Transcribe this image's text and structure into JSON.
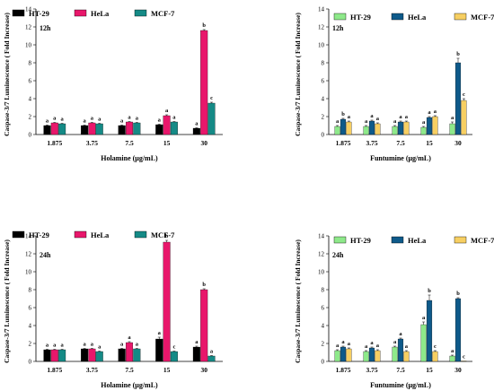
{
  "chart_data": [
    {
      "type": "bar",
      "panel_label": "12h",
      "ylabel": "Caspase-3/7 Luminescence ( Fold Increase)",
      "xlabel": "Holamine (μg/mL)",
      "categories": [
        "1.875",
        "3.75",
        "7.5",
        "15",
        "30"
      ],
      "ylim": [
        0,
        14
      ],
      "yticks": [
        0,
        2,
        4,
        6,
        8,
        10,
        12,
        14
      ],
      "legend_position": "top",
      "series": [
        {
          "name": "HT-29",
          "color": "#000000",
          "values": [
            1.0,
            1.0,
            1.0,
            1.1,
            0.7
          ],
          "errors": [
            0.05,
            0.05,
            0.05,
            0.05,
            0.05
          ],
          "sig": [
            "a",
            "a",
            "a",
            "a",
            "a"
          ]
        },
        {
          "name": "HeLa",
          "color": "#e8176b",
          "values": [
            1.3,
            1.3,
            1.4,
            2.1,
            11.6
          ],
          "errors": [
            0.05,
            0.05,
            0.05,
            0.1,
            0.1
          ],
          "sig": [
            "a",
            "a",
            "a",
            "a",
            "b"
          ]
        },
        {
          "name": "MCF-7",
          "color": "#158a86",
          "values": [
            1.2,
            1.2,
            1.3,
            1.4,
            3.5
          ],
          "errors": [
            0.05,
            0.05,
            0.05,
            0.05,
            0.1
          ],
          "sig": [
            "a",
            "a",
            "a",
            "a",
            "c"
          ]
        }
      ]
    },
    {
      "type": "bar",
      "panel_label": "12h",
      "ylabel": "Caspase-3/7 Luminescence ( Fold Increase)",
      "xlabel": "Funtumine (μg/mL)",
      "categories": [
        "1.875",
        "3.75",
        "7.5",
        "15",
        "30"
      ],
      "ylim": [
        0,
        14
      ],
      "yticks": [
        0,
        2,
        4,
        6,
        8,
        10,
        12,
        14
      ],
      "legend_position": "top",
      "series": [
        {
          "name": "HT-29",
          "color": "#8ee98a",
          "values": [
            0.9,
            0.9,
            0.9,
            0.8,
            1.2
          ],
          "errors": [
            0.1,
            0.1,
            0.1,
            0.1,
            0.2
          ],
          "sig": [
            "a",
            "a",
            "a",
            "a",
            "a"
          ]
        },
        {
          "name": "HeLa",
          "color": "#0e5a8a",
          "values": [
            1.7,
            1.5,
            1.4,
            1.9,
            8.0
          ],
          "errors": [
            0.1,
            0.1,
            0.1,
            0.1,
            0.5
          ],
          "sig": [
            "b",
            "a",
            "a",
            "a",
            "b"
          ]
        },
        {
          "name": "MCF-7",
          "color": "#f7cf62",
          "values": [
            1.4,
            1.2,
            1.4,
            2.0,
            3.8
          ],
          "errors": [
            0.1,
            0.1,
            0.1,
            0.1,
            0.2
          ],
          "sig": [
            "a",
            "a",
            "a",
            "a",
            "c"
          ]
        }
      ]
    },
    {
      "type": "bar",
      "panel_label": "24h",
      "ylabel": "Caspase-3/7 Luminescence ( Fold Increase)",
      "xlabel": "Holamine (μg/mL)",
      "categories": [
        "1.875",
        "3.75",
        "7.5",
        "15",
        "30"
      ],
      "ylim": [
        0,
        14
      ],
      "yticks": [
        0,
        2,
        4,
        6,
        8,
        10,
        12,
        14
      ],
      "legend_position": "top",
      "series": [
        {
          "name": "HT-29",
          "color": "#000000",
          "values": [
            1.3,
            1.4,
            1.4,
            2.5,
            1.6
          ],
          "errors": [
            0.05,
            0.05,
            0.05,
            0.2,
            0.1
          ],
          "sig": [
            "a",
            "a",
            "a",
            "a",
            "a"
          ]
        },
        {
          "name": "HeLa",
          "color": "#e8176b",
          "values": [
            1.3,
            1.4,
            2.1,
            13.3,
            8.0
          ],
          "errors": [
            0.05,
            0.05,
            0.1,
            0.2,
            0.1
          ],
          "sig": [
            "a",
            "a",
            "a",
            "b",
            "b"
          ]
        },
        {
          "name": "MCF-7",
          "color": "#158a86",
          "values": [
            1.3,
            1.1,
            1.4,
            1.1,
            0.6
          ],
          "errors": [
            0.05,
            0.05,
            0.05,
            0.05,
            0.05
          ],
          "sig": [
            "a",
            "a",
            "a",
            "c",
            "a"
          ]
        }
      ]
    },
    {
      "type": "bar",
      "panel_label": "24h",
      "ylabel": "Caspase-3/7 Luminescence ( Fold Increase)",
      "xlabel": "Funtumine (μg/mL)",
      "categories": [
        "1.875",
        "3.75",
        "7.5",
        "15",
        "30"
      ],
      "ylim": [
        0,
        14
      ],
      "yticks": [
        0,
        2,
        4,
        6,
        8,
        10,
        12,
        14
      ],
      "legend_position": "top",
      "series": [
        {
          "name": "HT-29",
          "color": "#8ee98a",
          "values": [
            1.2,
            1.1,
            1.6,
            4.1,
            0.6
          ],
          "errors": [
            0.1,
            0.1,
            0.1,
            0.3,
            0.1
          ],
          "sig": [
            "a",
            "a",
            "a",
            "a",
            "a"
          ]
        },
        {
          "name": "HeLa",
          "color": "#0e5a8a",
          "values": [
            1.6,
            1.5,
            2.5,
            6.8,
            7.0
          ],
          "errors": [
            0.1,
            0.1,
            0.1,
            0.6,
            0.1
          ],
          "sig": [
            "a",
            "a",
            "a",
            "b",
            "b"
          ]
        },
        {
          "name": "MCF-7",
          "color": "#f7cf62",
          "values": [
            1.4,
            1.2,
            1.1,
            1.1,
            0.05
          ],
          "errors": [
            0.1,
            0.1,
            0.1,
            0.1,
            0.0
          ],
          "sig": [
            "a",
            "a",
            "a",
            "c",
            "c"
          ]
        }
      ]
    }
  ]
}
